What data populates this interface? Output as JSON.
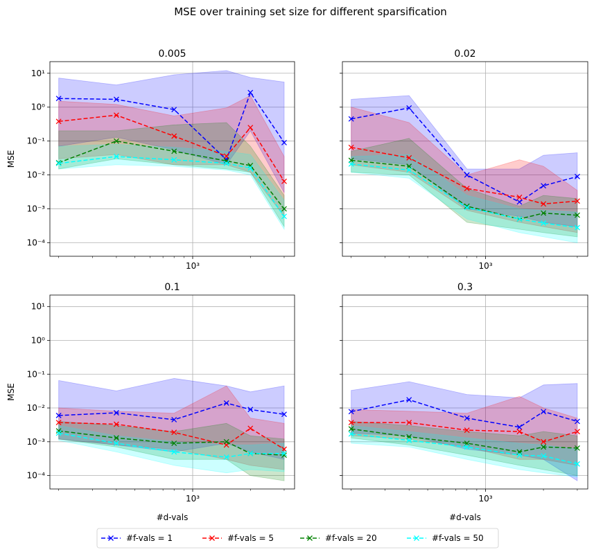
{
  "figure": {
    "title": "MSE over training set size for different sparsification",
    "legend_position": "bottom-center",
    "legend": [
      {
        "label": "#f-vals = 1",
        "color": "#0000ff"
      },
      {
        "label": "#f-vals = 5",
        "color": "#ff0000"
      },
      {
        "label": "#f-vals = 20",
        "color": "#008000"
      },
      {
        "label": "#f-vals = 50",
        "color": "#00ffff"
      }
    ]
  },
  "chart_data": [
    {
      "type": "line",
      "title": "0.005",
      "xlabel": "",
      "ylabel": "MSE",
      "xscale": "log",
      "yscale": "log",
      "xlim": [
        180,
        3400
      ],
      "ylim": [
        4e-05,
        22
      ],
      "x_major_ticks": [
        {
          "value": 1000,
          "label": "10^3"
        }
      ],
      "y_major_ticks": [
        {
          "value": 0.0001,
          "label": "10^-4"
        },
        {
          "value": 0.001,
          "label": "10^-3"
        },
        {
          "value": 0.01,
          "label": "10^-2"
        },
        {
          "value": 0.1,
          "label": "10^-1"
        },
        {
          "value": 1,
          "label": "10^0"
        },
        {
          "value": 10,
          "label": "10^1"
        }
      ],
      "grid": true,
      "x": [
        200,
        400,
        800,
        1500,
        2000,
        3000
      ],
      "series": [
        {
          "name": "#f-vals = 1",
          "color": "#0000ff",
          "values": [
            1.8,
            1.7,
            0.85,
            0.028,
            2.7,
            0.09
          ],
          "upper": [
            7.2,
            4.5,
            9.0,
            12.0,
            7.5,
            5.5
          ],
          "lower": [
            0.07,
            0.13,
            0.055,
            0.02,
            0.2,
            0.003
          ]
        },
        {
          "name": "#f-vals = 5",
          "color": "#ff0000",
          "values": [
            0.38,
            0.58,
            0.14,
            0.036,
            0.25,
            0.0065
          ],
          "upper": [
            1.5,
            1.2,
            0.55,
            0.95,
            2.2,
            0.035
          ],
          "lower": [
            0.03,
            0.04,
            0.02,
            0.02,
            0.012,
            0.0006
          ]
        },
        {
          "name": "#f-vals = 20",
          "color": "#008000",
          "values": [
            0.023,
            0.1,
            0.05,
            0.026,
            0.019,
            0.001
          ],
          "upper": [
            0.2,
            0.2,
            0.3,
            0.35,
            0.07,
            0.0025
          ],
          "lower": [
            0.015,
            0.03,
            0.02,
            0.015,
            0.012,
            0.0003
          ]
        },
        {
          "name": "#f-vals = 50",
          "color": "#00ffff",
          "values": [
            0.022,
            0.035,
            0.028,
            0.022,
            0.016,
            0.0006
          ],
          "upper": [
            0.07,
            0.08,
            0.065,
            0.05,
            0.04,
            0.0018
          ],
          "lower": [
            0.015,
            0.02,
            0.018,
            0.014,
            0.01,
            0.00025
          ]
        }
      ]
    },
    {
      "type": "line",
      "title": "0.02",
      "xlabel": "",
      "ylabel": "",
      "xscale": "log",
      "yscale": "log",
      "xlim": [
        180,
        3400
      ],
      "ylim": [
        4e-05,
        22
      ],
      "x_major_ticks": [
        {
          "value": 1000,
          "label": "10^3"
        }
      ],
      "grid": true,
      "x": [
        200,
        400,
        800,
        1500,
        2000,
        3000
      ],
      "series": [
        {
          "name": "#f-vals = 1",
          "color": "#0000ff",
          "values": [
            0.45,
            0.95,
            0.01,
            0.0016,
            0.0048,
            0.009
          ],
          "upper": [
            1.7,
            2.2,
            0.015,
            0.015,
            0.038,
            0.045
          ],
          "lower": [
            0.03,
            0.02,
            0.001,
            0.0006,
            0.0004,
            0.0003
          ]
        },
        {
          "name": "#f-vals = 5",
          "color": "#ff0000",
          "values": [
            0.065,
            0.032,
            0.004,
            0.0022,
            0.0014,
            0.0017
          ],
          "upper": [
            1.0,
            0.35,
            0.01,
            0.028,
            0.018,
            0.0035
          ],
          "lower": [
            0.02,
            0.012,
            0.0009,
            0.0004,
            0.0003,
            0.0002
          ]
        },
        {
          "name": "#f-vals = 20",
          "color": "#008000",
          "values": [
            0.027,
            0.018,
            0.0012,
            0.0005,
            0.00075,
            0.00065
          ],
          "upper": [
            0.05,
            0.12,
            0.004,
            0.0012,
            0.0025,
            0.002
          ],
          "lower": [
            0.012,
            0.01,
            0.0004,
            0.00025,
            0.0002,
            0.00015
          ]
        },
        {
          "name": "#f-vals = 50",
          "color": "#00ffff",
          "values": [
            0.021,
            0.014,
            0.0011,
            0.0005,
            0.00038,
            0.00028
          ],
          "upper": [
            0.035,
            0.04,
            0.0025,
            0.001,
            0.0009,
            0.0008
          ],
          "lower": [
            0.012,
            0.008,
            0.0005,
            0.0002,
            0.00015,
            0.0001
          ]
        }
      ]
    },
    {
      "type": "line",
      "title": "0.1",
      "xlabel": "#d-vals",
      "ylabel": "MSE",
      "xscale": "log",
      "yscale": "log",
      "xlim": [
        180,
        3400
      ],
      "ylim": [
        4e-05,
        22
      ],
      "x_major_ticks": [
        {
          "value": 1000,
          "label": "10^3"
        }
      ],
      "y_major_ticks": [
        {
          "value": 0.0001,
          "label": "10^-4"
        },
        {
          "value": 0.001,
          "label": "10^-3"
        },
        {
          "value": 0.01,
          "label": "10^-2"
        },
        {
          "value": 0.1,
          "label": "10^-1"
        },
        {
          "value": 1,
          "label": "10^0"
        },
        {
          "value": 10,
          "label": "10^1"
        }
      ],
      "grid": true,
      "x": [
        200,
        400,
        800,
        1500,
        2000,
        3000
      ],
      "series": [
        {
          "name": "#f-vals = 1",
          "color": "#0000ff",
          "values": [
            0.006,
            0.0072,
            0.0045,
            0.014,
            0.009,
            0.0065
          ],
          "upper": [
            0.065,
            0.032,
            0.075,
            0.045,
            0.03,
            0.045
          ],
          "lower": [
            0.0012,
            0.0008,
            0.0005,
            0.0009,
            0.0005,
            0.0003
          ]
        },
        {
          "name": "#f-vals = 5",
          "color": "#ff0000",
          "values": [
            0.0037,
            0.0033,
            0.0019,
            0.0008,
            0.0025,
            0.0006
          ],
          "upper": [
            0.01,
            0.008,
            0.007,
            0.045,
            0.005,
            0.0035
          ],
          "lower": [
            0.0012,
            0.0008,
            0.0006,
            0.0003,
            0.0002,
            0.00015
          ]
        },
        {
          "name": "#f-vals = 20",
          "color": "#008000",
          "values": [
            0.0021,
            0.0013,
            0.0009,
            0.001,
            0.00045,
            0.0004
          ],
          "upper": [
            0.004,
            0.003,
            0.002,
            0.0035,
            0.0015,
            0.0012
          ],
          "lower": [
            0.0012,
            0.0007,
            0.0003,
            0.0003,
            0.0001,
            7e-05
          ]
        },
        {
          "name": "#f-vals = 50",
          "color": "#00ffff",
          "values": [
            0.0018,
            0.0009,
            0.0005,
            0.00035,
            0.00045,
            0.00045
          ],
          "upper": [
            0.003,
            0.0015,
            0.001,
            0.0008,
            0.0008,
            0.0009
          ],
          "lower": [
            0.0011,
            0.0005,
            0.0002,
            0.00012,
            0.00015,
            0.00013
          ]
        }
      ]
    },
    {
      "type": "line",
      "title": "0.3",
      "xlabel": "#d-vals",
      "ylabel": "",
      "xscale": "log",
      "yscale": "log",
      "xlim": [
        180,
        3400
      ],
      "ylim": [
        4e-05,
        22
      ],
      "x_major_ticks": [
        {
          "value": 1000,
          "label": "10^3"
        }
      ],
      "grid": true,
      "x": [
        200,
        400,
        800,
        1500,
        2000,
        3000
      ],
      "series": [
        {
          "name": "#f-vals = 1",
          "color": "#0000ff",
          "values": [
            0.0078,
            0.0175,
            0.005,
            0.0027,
            0.0078,
            0.004
          ],
          "upper": [
            0.033,
            0.06,
            0.025,
            0.02,
            0.048,
            0.053
          ],
          "lower": [
            0.0018,
            0.0015,
            0.0006,
            0.0004,
            0.0003,
            7e-05
          ]
        },
        {
          "name": "#f-vals = 5",
          "color": "#ff0000",
          "values": [
            0.0037,
            0.0037,
            0.0022,
            0.002,
            0.001,
            0.002
          ],
          "upper": [
            0.009,
            0.008,
            0.007,
            0.022,
            0.01,
            0.005
          ],
          "lower": [
            0.0015,
            0.0012,
            0.0007,
            0.0003,
            0.0003,
            0.0002
          ]
        },
        {
          "name": "#f-vals = 20",
          "color": "#008000",
          "values": [
            0.0024,
            0.0014,
            0.0009,
            0.0005,
            0.0007,
            0.00065
          ],
          "upper": [
            0.004,
            0.003,
            0.002,
            0.0015,
            0.002,
            0.0015
          ],
          "lower": [
            0.0013,
            0.0008,
            0.0004,
            0.0002,
            0.00015,
            0.0001
          ]
        },
        {
          "name": "#f-vals = 50",
          "color": "#00ffff",
          "values": [
            0.0017,
            0.0011,
            0.0007,
            0.0004,
            0.00038,
            0.00022
          ],
          "upper": [
            0.003,
            0.002,
            0.0013,
            0.0009,
            0.0008,
            0.0006
          ],
          "lower": [
            0.0009,
            0.0007,
            0.0003,
            0.00015,
            0.00012,
            9e-05
          ]
        }
      ]
    }
  ]
}
